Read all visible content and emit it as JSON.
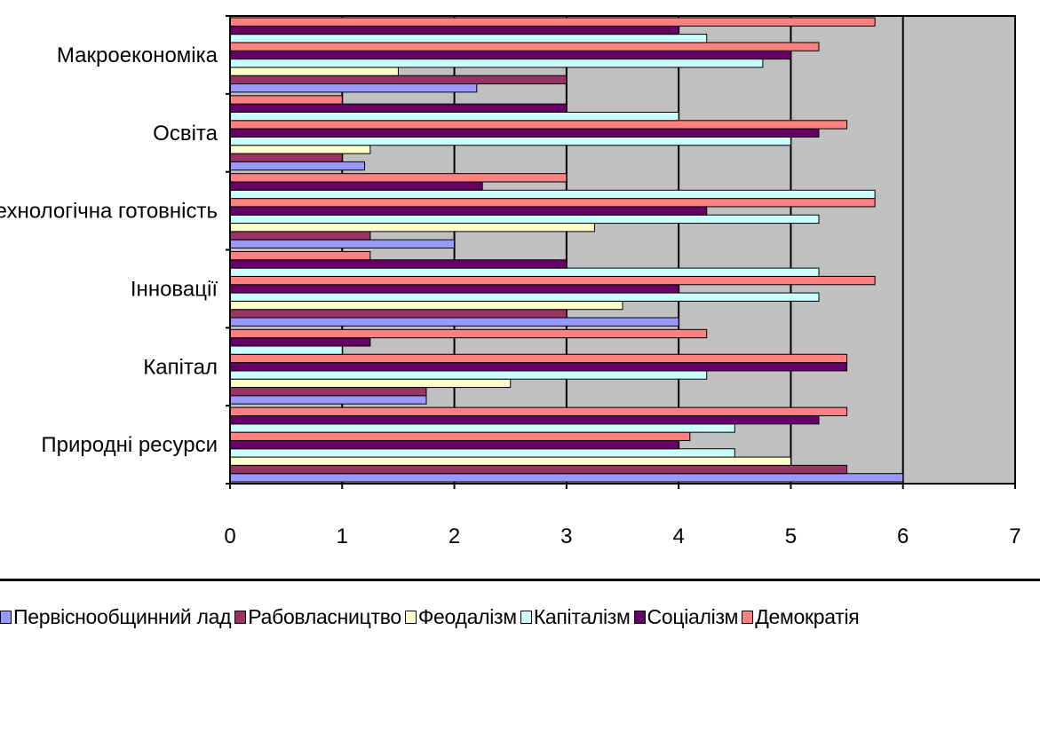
{
  "chart_data": {
    "type": "bar",
    "orientation": "horizontal",
    "title": "",
    "xlabel": "",
    "ylabel": "",
    "xlim": [
      0,
      7
    ],
    "x_ticks": [
      "0",
      "1",
      "2",
      "3",
      "4",
      "5",
      "6",
      "7"
    ],
    "grid": "vertical major gridlines",
    "legend_position": "bottom",
    "categories": [
      "Природні ресурси",
      "Капітал",
      "Інновації",
      "Технологічна готовність",
      "Освіта",
      "Макроекономіка"
    ],
    "category_labels_shown": [
      "Природні ресурси",
      "Капітал",
      "Інновації",
      "Технологічна готовність",
      "Освіта",
      "Макроекономіка"
    ],
    "series": [
      {
        "name": "Первіснообщинний лад",
        "color": "#9999ff",
        "values": [
          6,
          1.75,
          4,
          2,
          1.2,
          2.2
        ]
      },
      {
        "name": "Рабовласництво",
        "color": "#993366",
        "values": [
          5.5,
          1.75,
          3,
          1.25,
          1,
          3
        ]
      },
      {
        "name": "Феодалізм",
        "color": "#ffffcc",
        "values": [
          5,
          2.5,
          3.5,
          3.25,
          1.25,
          1.5
        ]
      },
      {
        "name": "Капіталізм",
        "color": "#ccffff",
        "values": [
          4.5,
          4.25,
          5.25,
          5.25,
          5,
          4.75
        ]
      },
      {
        "name": "Соціалізм",
        "color": "#660066",
        "values": [
          4,
          5.5,
          4,
          4.25,
          5.25,
          5
        ]
      },
      {
        "name": "Демократія",
        "color": "#ff8080",
        "values": [
          4.1,
          5.5,
          5.75,
          5.75,
          5.5,
          5.25
        ]
      }
    ],
    "extra_bars_per_group": [
      {
        "values": [
          4.5,
          1,
          5.25,
          5.75,
          4,
          4.25
        ]
      },
      {
        "values": [
          5.25,
          1.25,
          3,
          2.25,
          3,
          4
        ]
      },
      {
        "values": [
          5.5,
          4.25,
          1.25,
          3,
          1,
          5.75
        ]
      }
    ]
  },
  "colors": {
    "plot_background": "#c0c0c0",
    "gridline": "#000000",
    "axis": "#000000",
    "bar_outline": "#000000"
  },
  "legend": {
    "items": [
      {
        "label": "Первіснообщинний лад",
        "color": "#9999ff"
      },
      {
        "label": "Рабовласництво",
        "color": "#993366"
      },
      {
        "label": "Феодалізм",
        "color": "#ffffcc"
      },
      {
        "label": "Капіталізм",
        "color": "#ccffff"
      },
      {
        "label": "Соціалізм",
        "color": "#660066"
      },
      {
        "label": "Демократія",
        "color": "#ff8080"
      }
    ]
  }
}
